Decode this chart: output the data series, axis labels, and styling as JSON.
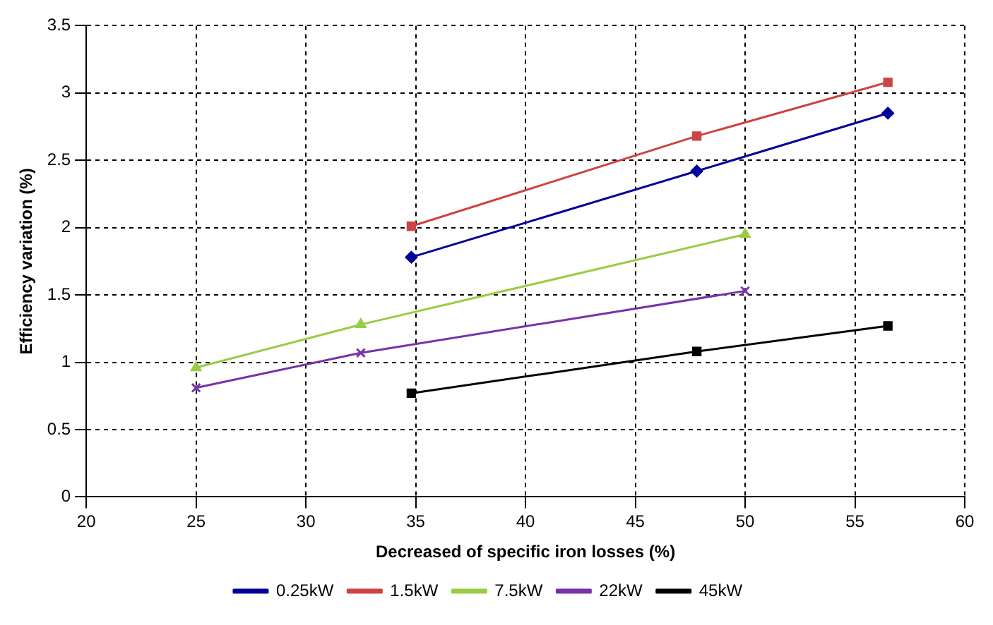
{
  "chart_data": {
    "type": "line",
    "xlabel": "Decreased of specific iron losses (%)",
    "ylabel": "Efficiency variation (%)",
    "xlim": [
      20,
      60
    ],
    "xticks": [
      20,
      25,
      30,
      35,
      40,
      45,
      50,
      55,
      60
    ],
    "ylim": [
      0,
      3.5
    ],
    "yticks": [
      0,
      0.5,
      1,
      1.5,
      2,
      2.5,
      3,
      3.5
    ],
    "grid": true,
    "legend": "bottom",
    "line_style": "solid",
    "series": [
      {
        "name": "0.25kW",
        "color": "#000099",
        "marker": "diamond",
        "x": [
          34.8,
          47.8,
          56.5
        ],
        "values": [
          1.78,
          2.42,
          2.85
        ]
      },
      {
        "name": "1.5kW",
        "color": "#cc4444",
        "marker": "square",
        "x": [
          34.8,
          47.8,
          56.5
        ],
        "values": [
          2.01,
          2.68,
          3.08
        ]
      },
      {
        "name": "7.5kW",
        "color": "#99cc44",
        "marker": "triangle",
        "x": [
          25,
          32.5,
          50
        ],
        "values": [
          0.96,
          1.28,
          1.95
        ]
      },
      {
        "name": "22kW",
        "color": "#7733aa",
        "marker": "cross",
        "x": [
          25,
          32.5,
          50
        ],
        "values": [
          0.81,
          1.07,
          1.53
        ]
      },
      {
        "name": "45kW",
        "color": "#000000",
        "marker": "square",
        "x": [
          34.8,
          47.8,
          56.5
        ],
        "values": [
          0.77,
          1.08,
          1.27
        ]
      }
    ]
  }
}
